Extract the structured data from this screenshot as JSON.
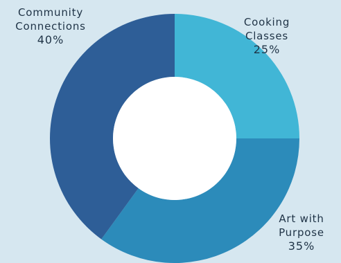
{
  "chart_data": {
    "type": "pie",
    "variant": "donut",
    "title": "",
    "series": [
      {
        "name": "",
        "slices": [
          {
            "label_lines": [
              "Cooking",
              "Classes"
            ],
            "value": 25,
            "value_label": "25%",
            "color": "#41b6d6"
          },
          {
            "label_lines": [
              "Art with",
              "Purpose"
            ],
            "value": 35,
            "value_label": "35%",
            "color": "#2c8bba"
          },
          {
            "label_lines": [
              "Community",
              "Connections"
            ],
            "value": 40,
            "value_label": "40%",
            "color": "#2e5e97"
          }
        ]
      }
    ],
    "start_angle_deg": 0,
    "direction": "clockwise",
    "legend": "none",
    "background": "#d6e7f0",
    "hole_color": "#ffffff"
  }
}
